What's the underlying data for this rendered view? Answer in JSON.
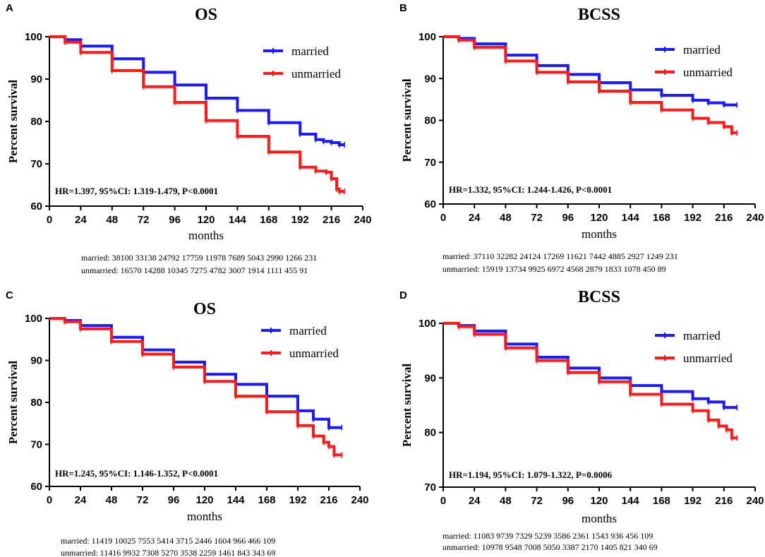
{
  "chart_data": [
    {
      "panel": "A",
      "title": "OS",
      "type": "line",
      "xlabel": "months",
      "ylabel": "Percent survival",
      "xlim": [
        0,
        240
      ],
      "ylim": [
        60,
        100
      ],
      "xticks": [
        0,
        24,
        48,
        72,
        96,
        120,
        144,
        168,
        192,
        216,
        240
      ],
      "yticks": [
        60,
        70,
        80,
        90,
        100
      ],
      "series": [
        {
          "name": "married",
          "color": "#1a1aff",
          "x": [
            0,
            12,
            24,
            48,
            72,
            96,
            120,
            144,
            168,
            192,
            204,
            210,
            216,
            222,
            226
          ],
          "y": [
            100,
            99.3,
            97.8,
            94.8,
            91.6,
            88.6,
            85.5,
            82.6,
            79.7,
            77,
            75.7,
            75.3,
            75,
            74.5,
            74.5
          ]
        },
        {
          "name": "unmarried",
          "color": "#ff1a1a",
          "x": [
            0,
            12,
            24,
            48,
            72,
            96,
            120,
            144,
            168,
            192,
            204,
            212,
            216,
            220,
            222,
            226
          ],
          "y": [
            100,
            98.7,
            96.3,
            92,
            88.2,
            84.5,
            80.2,
            76.5,
            72.8,
            69.2,
            68.3,
            68,
            66.5,
            64,
            63.5,
            63.5
          ]
        }
      ],
      "annotation": "HR=1.397, 95%CI: 1.319-1.479, P<0.0001",
      "risk_table": [
        "married: 38100 33138 24792 17759 11978 7689 5043 2990 1266 231",
        "unmarried: 16570 14288 10345 7275 4782 3007 1914 1111 455 91"
      ]
    },
    {
      "panel": "B",
      "title": "BCSS",
      "type": "line",
      "xlabel": "months",
      "ylabel": "Percent survival",
      "xlim": [
        0,
        240
      ],
      "ylim": [
        60,
        100
      ],
      "xticks": [
        0,
        24,
        48,
        72,
        96,
        120,
        144,
        168,
        192,
        216,
        240
      ],
      "yticks": [
        60,
        70,
        80,
        90,
        100
      ],
      "series": [
        {
          "name": "married",
          "color": "#1a1aff",
          "x": [
            0,
            12,
            24,
            48,
            72,
            96,
            120,
            144,
            168,
            192,
            204,
            216,
            226
          ],
          "y": [
            100,
            99.6,
            98.3,
            95.6,
            93.1,
            91,
            89,
            87.3,
            86,
            84.8,
            84.2,
            83.7,
            83.7
          ]
        },
        {
          "name": "unmarried",
          "color": "#ff1a1a",
          "x": [
            0,
            12,
            24,
            48,
            72,
            96,
            120,
            144,
            168,
            192,
            204,
            216,
            222,
            226
          ],
          "y": [
            100,
            99.2,
            97.5,
            94.2,
            91.5,
            89.2,
            87,
            84.3,
            82.5,
            80.5,
            79.5,
            78.5,
            77,
            77
          ]
        }
      ],
      "annotation": "HR=1.332, 95%CI: 1.244-1.426, P<0.0001",
      "risk_table": [
        "married: 37110 32282 24124 17269 11621 7442 4885 2927 1249 231",
        "unmarried: 15919 13734 9925 6972 4568 2879 1833 1078 450 89"
      ]
    },
    {
      "panel": "C",
      "title": "OS",
      "type": "line",
      "xlabel": "months",
      "ylabel": "Percent survival",
      "xlim": [
        0,
        240
      ],
      "ylim": [
        60,
        100
      ],
      "xticks": [
        0,
        24,
        48,
        72,
        96,
        120,
        144,
        168,
        192,
        216,
        240
      ],
      "yticks": [
        60,
        70,
        80,
        90,
        100
      ],
      "series": [
        {
          "name": "married",
          "color": "#1a1aff",
          "x": [
            0,
            12,
            24,
            48,
            72,
            96,
            120,
            144,
            168,
            192,
            204,
            216,
            226
          ],
          "y": [
            100,
            99.5,
            98.3,
            95.5,
            92.5,
            89.6,
            86.7,
            84.3,
            81.5,
            78,
            76,
            74,
            74
          ]
        },
        {
          "name": "unmarried",
          "color": "#ff1a1a",
          "x": [
            0,
            12,
            24,
            48,
            72,
            96,
            120,
            144,
            168,
            192,
            204,
            212,
            216,
            220,
            226
          ],
          "y": [
            100,
            99.2,
            97.5,
            94.5,
            91.5,
            88.4,
            85,
            81.5,
            77.8,
            74.5,
            72,
            70.5,
            69.5,
            67.5,
            67.5
          ]
        }
      ],
      "annotation": "HR=1.245, 95%CI: 1.146-1.352, P<0.0001",
      "risk_table": [
        "married: 11419 10025 7553 5414 3715 2446 1604 966 466 109",
        "unmarried: 11416 9932 7308 5270 3538 2259 1461 843 343 69"
      ]
    },
    {
      "panel": "D",
      "title": "BCSS",
      "type": "line",
      "xlabel": "months",
      "ylabel": "Percent survival",
      "xlim": [
        0,
        240
      ],
      "ylim": [
        70,
        100
      ],
      "xticks": [
        0,
        24,
        48,
        72,
        96,
        120,
        144,
        168,
        192,
        216,
        240
      ],
      "yticks": [
        70,
        80,
        90,
        100
      ],
      "series": [
        {
          "name": "married",
          "color": "#1a1aff",
          "x": [
            0,
            12,
            24,
            48,
            72,
            96,
            120,
            144,
            168,
            192,
            204,
            216,
            226
          ],
          "y": [
            100,
            99.6,
            98.6,
            96.2,
            93.8,
            91.8,
            90,
            88.6,
            87.5,
            86.2,
            85.6,
            84.6,
            84.6
          ]
        },
        {
          "name": "unmarried",
          "color": "#ff1a1a",
          "x": [
            0,
            12,
            24,
            48,
            72,
            96,
            120,
            144,
            168,
            192,
            204,
            212,
            218,
            222,
            226
          ],
          "y": [
            100,
            99.4,
            98,
            95.5,
            93.2,
            91,
            89.3,
            87,
            85.2,
            84,
            82.3,
            81.2,
            80.5,
            79,
            79
          ]
        }
      ],
      "annotation": "HR=1.194, 95%CI: 1.079-1.322, P=0.0006",
      "risk_table": [
        "married: 11083 9739 7329 5239 3586 2361 1543 936 456 109",
        "unmarried: 10978 9548 7008 5050 3387 2170 1405 821 340 69"
      ]
    }
  ]
}
